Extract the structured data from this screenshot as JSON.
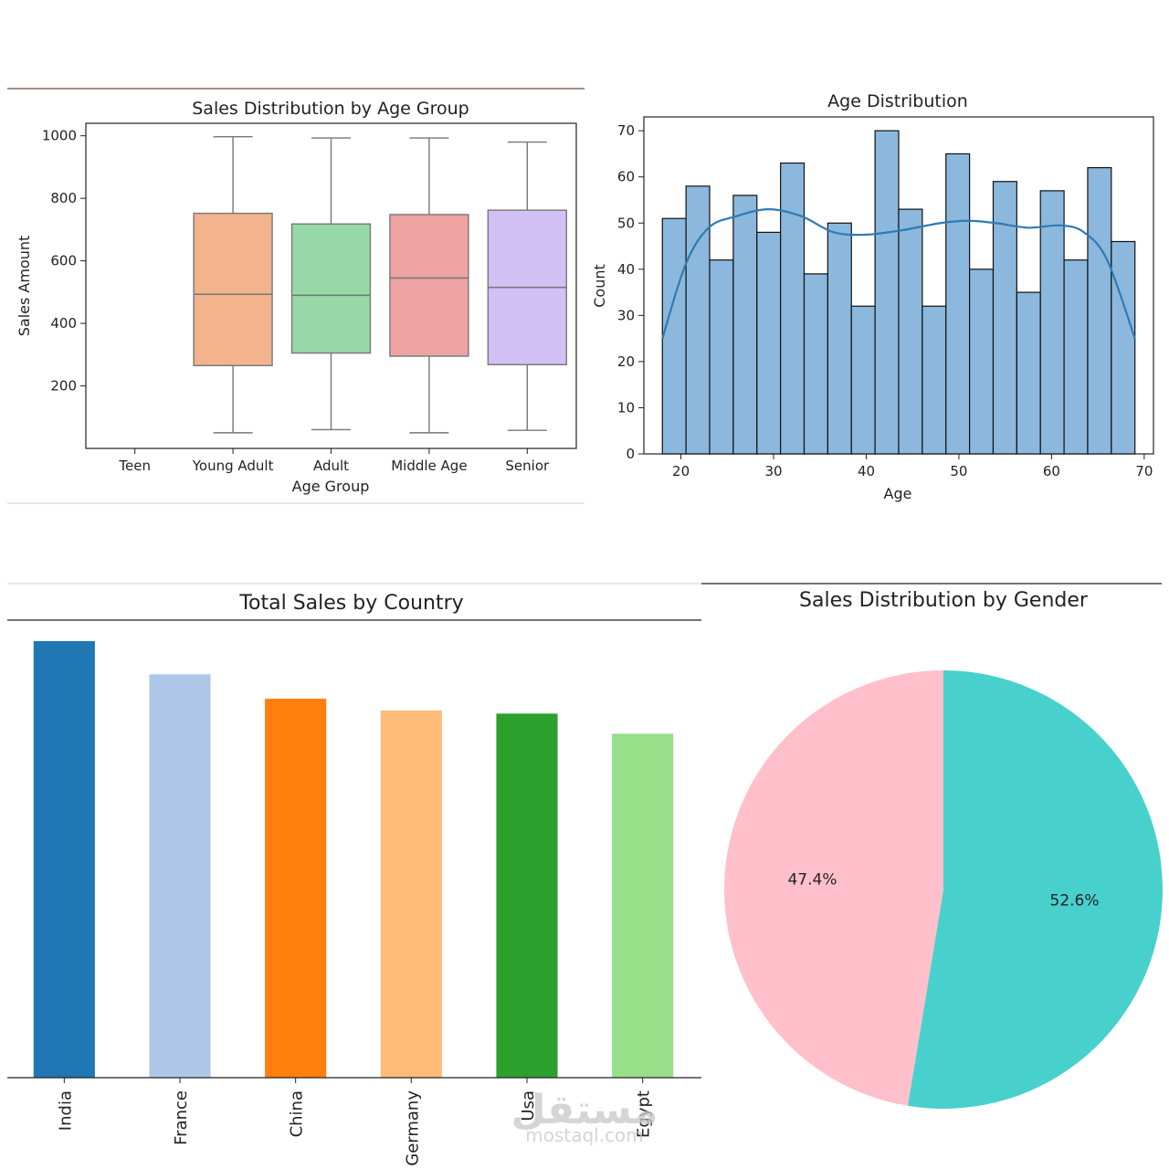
{
  "watermark": {
    "arabic": "مستقل",
    "latin": "mostaql.com"
  },
  "chart_data": [
    {
      "type": "box",
      "title": "Sales Distribution by Age Group",
      "xlabel": "Age Group",
      "ylabel": "Sales Amount",
      "ylim": [
        0,
        1040
      ],
      "yticks": [
        "200",
        "400",
        "600",
        "800",
        "1000"
      ],
      "categories": [
        "Teen",
        "Young Adult",
        "Adult",
        "Middle Age",
        "Senior"
      ],
      "boxes": [
        null,
        {
          "min": 50,
          "q1": 265,
          "median": 493,
          "q3": 752,
          "max": 997,
          "color": "#f2b38d"
        },
        {
          "min": 60,
          "q1": 305,
          "median": 490,
          "q3": 718,
          "max": 993,
          "color": "#96d9a6"
        },
        {
          "min": 50,
          "q1": 295,
          "median": 545,
          "q3": 748,
          "max": 993,
          "color": "#f0a3a3"
        },
        {
          "min": 58,
          "q1": 268,
          "median": 515,
          "q3": 762,
          "max": 980,
          "color": "#d1c1f5"
        }
      ]
    },
    {
      "type": "histogram",
      "title": "Age Distribution",
      "xlabel": "Age",
      "ylabel": "Count",
      "xlim": [
        16,
        71
      ],
      "ylim": [
        0,
        73
      ],
      "xticks": [
        "20",
        "30",
        "40",
        "50",
        "60",
        "70"
      ],
      "yticks": [
        "0",
        "10",
        "20",
        "30",
        "40",
        "50",
        "60",
        "70"
      ],
      "bin_start": 18,
      "bin_width": 2.55,
      "counts": [
        51,
        58,
        42,
        56,
        48,
        63,
        39,
        50,
        32,
        70,
        53,
        32,
        65,
        40,
        59,
        35,
        57,
        42,
        62,
        46
      ],
      "kde": [
        [
          18,
          25
        ],
        [
          20.5,
          41
        ],
        [
          23,
          49
        ],
        [
          26,
          51.5
        ],
        [
          29.5,
          53
        ],
        [
          33,
          51.5
        ],
        [
          36.5,
          48
        ],
        [
          40,
          47.5
        ],
        [
          44,
          48.5
        ],
        [
          48,
          50
        ],
        [
          51,
          50.5
        ],
        [
          54,
          50
        ],
        [
          57.5,
          49
        ],
        [
          61,
          49.5
        ],
        [
          63.5,
          48
        ],
        [
          66,
          42
        ],
        [
          69,
          25
        ]
      ],
      "bar_color": "#8bb8dc",
      "line_color": "#2e7bb5"
    },
    {
      "type": "bar",
      "title": "Total Sales by Country",
      "categories": [
        "India",
        "France",
        "China",
        "Germany",
        "Usa",
        "Egypt"
      ],
      "values": [
        100,
        92.4,
        86.8,
        84.1,
        83.4,
        78.8
      ],
      "colors": [
        "#1f77b4",
        "#aec7e8",
        "#ff7f0e",
        "#ffbb78",
        "#2ca02c",
        "#98df8a"
      ]
    },
    {
      "type": "pie",
      "title": "Sales Distribution by Gender",
      "slices": [
        {
          "value": 52.6,
          "label": "52.6%",
          "color": "#48d1cc"
        },
        {
          "value": 47.4,
          "label": "47.4%",
          "color": "#ffc0cb"
        }
      ]
    }
  ]
}
